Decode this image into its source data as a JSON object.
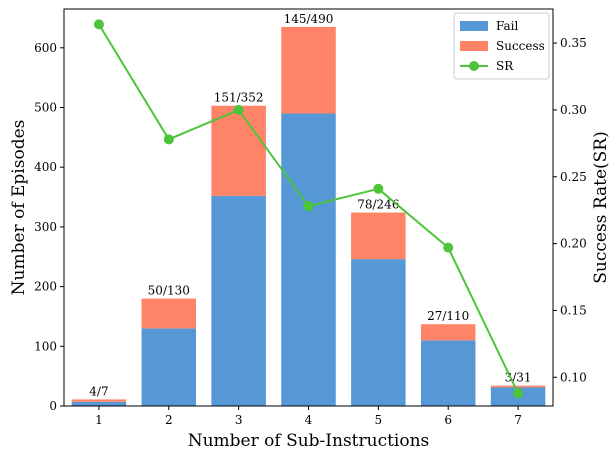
{
  "chart_data": {
    "type": "bar",
    "stacked": true,
    "categories": [
      "1",
      "2",
      "3",
      "4",
      "5",
      "6",
      "7"
    ],
    "series": [
      {
        "name": "Fail",
        "values": [
          7,
          130,
          352,
          490,
          246,
          110,
          31
        ],
        "color": "#5698d5"
      },
      {
        "name": "Success",
        "values": [
          4,
          50,
          151,
          145,
          78,
          27,
          3
        ],
        "color": "#ff8366"
      }
    ],
    "line_series": {
      "name": "SR",
      "axis": "right",
      "values": [
        0.364,
        0.278,
        0.3,
        0.228,
        0.241,
        0.197,
        0.088
      ],
      "color": "#4dc43a"
    },
    "bar_labels": [
      "4/7",
      "50/130",
      "151/352",
      "145/490",
      "78/246",
      "27/110",
      "3/31"
    ],
    "xlabel": "Number of Sub-Instructions",
    "ylabel": "Number of Episodes",
    "ylabel_right": "Success Rate(SR)",
    "ylim": [
      0,
      665
    ],
    "ylim_right": [
      0.0785,
      0.3755
    ],
    "yticks": [
      0,
      100,
      200,
      300,
      400,
      500,
      600
    ],
    "yticks_right": [
      0.1,
      0.15,
      0.2,
      0.25,
      0.3,
      0.35
    ],
    "yticks_right_labels": [
      "0.10",
      "0.15",
      "0.20",
      "0.25",
      "0.30",
      "0.35"
    ],
    "legend_position": "top-right",
    "grid": false
  }
}
